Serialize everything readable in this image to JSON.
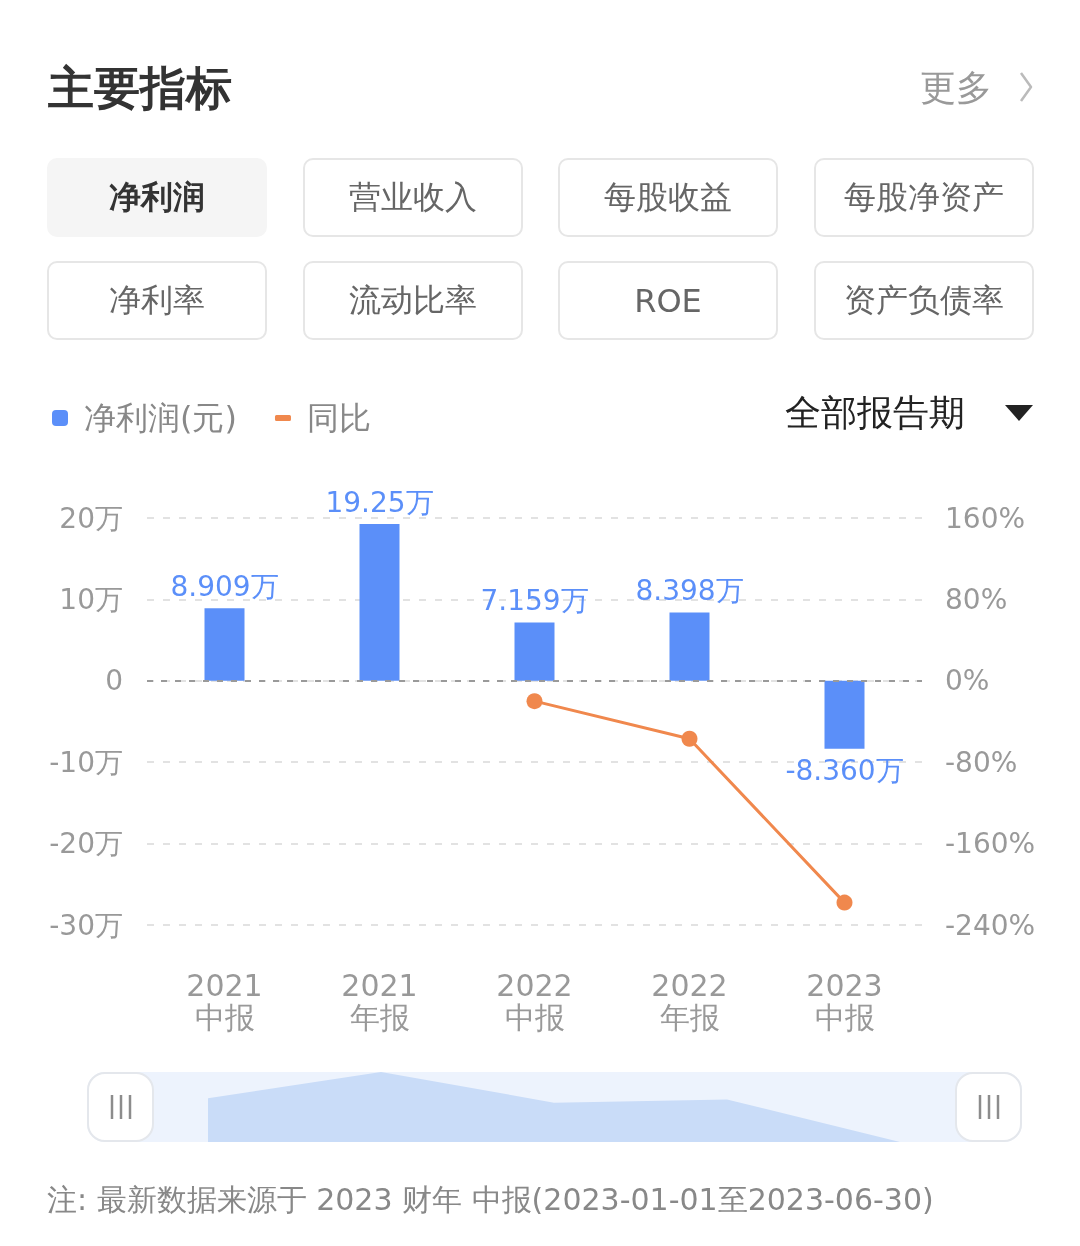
{
  "chart_data": {
    "type": "bar",
    "title": "主要指标",
    "categories": [
      "2021\n中报",
      "2021\n年报",
      "2022\n中报",
      "2022\n年报",
      "2023\n中报"
    ],
    "series": [
      {
        "name": "净利润(元)",
        "color": "#5b8ff9",
        "values": [
          8.909,
          19.25,
          7.159,
          8.398,
          -8.36
        ],
        "value_labels": [
          "8.909万",
          "19.25万",
          "7.159万",
          "8.398万",
          "-8.360万"
        ]
      },
      {
        "name": "同比",
        "type": "line",
        "axis": "y2",
        "color": "#f0884d",
        "values": [
          null,
          null,
          -20,
          -57,
          -218
        ]
      }
    ],
    "ylim": [
      -30,
      20
    ],
    "yticks": [
      {
        "value": 20,
        "label": "20万"
      },
      {
        "value": 10,
        "label": "10万"
      },
      0,
      {
        "value": -10,
        "label": "-10万"
      },
      {
        "value": -20,
        "label": "-20万"
      },
      {
        "value": -30,
        "label": "-30万"
      }
    ],
    "y2lim": [
      -240,
      160
    ],
    "y2ticks": [
      {
        "value": 160,
        "label": "160%"
      },
      {
        "value": 80,
        "label": "80%"
      },
      {
        "value": 0,
        "label": "0%"
      },
      {
        "value": -80,
        "label": "-80%"
      },
      {
        "value": -160,
        "label": "-160%"
      },
      {
        "value": -240,
        "label": "-240%"
      }
    ],
    "ref_lines": [
      {
        "axis": "y",
        "value": 0,
        "color": "#9a9a9a",
        "line_style": "dashed"
      }
    ],
    "grid": "y",
    "legend": "top left",
    "marker": "circle",
    "annotations": [
      "净利润",
      "营业收入",
      "每股收益",
      "每股净资产",
      "净利率",
      "流动比率",
      "ROE",
      "资产负债率",
      "更多",
      "全部报告期",
      "注: 最新数据来源于 2023 财年 中报(2023-01-01至2023-06-30)"
    ]
  }
}
